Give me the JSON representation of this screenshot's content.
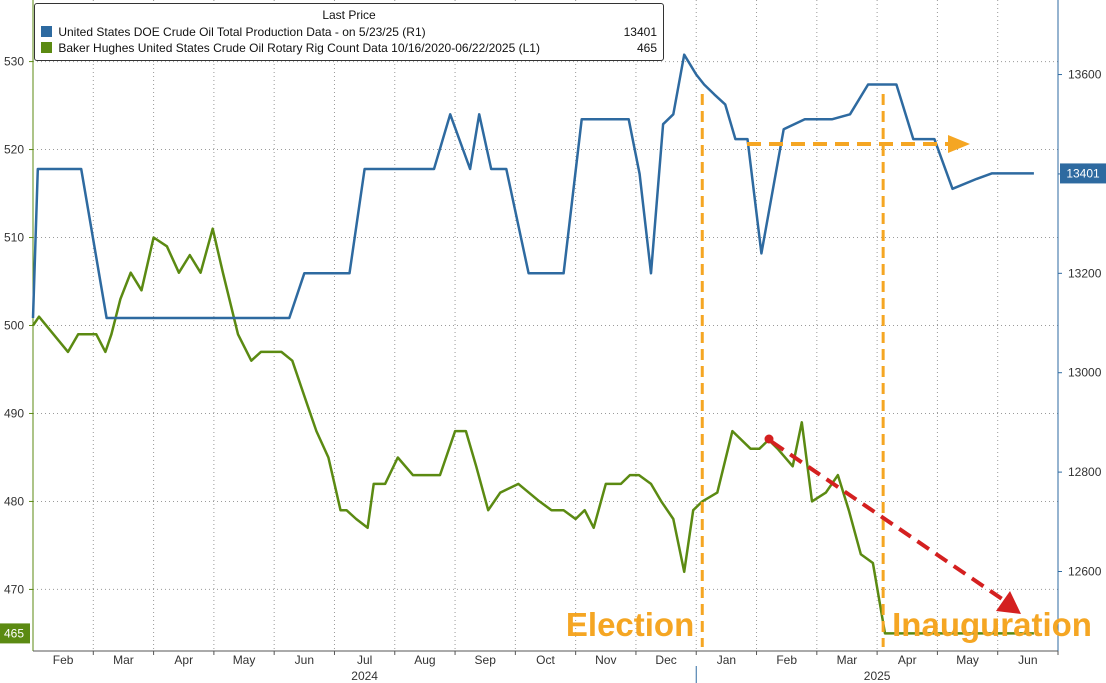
{
  "chart_data": {
    "type": "line",
    "legend": {
      "title": "Last Price",
      "placement": "top-left",
      "entries": [
        {
          "name": "United States DOE Crude Oil Total Production Data -  on 5/23/25  (R1)",
          "value": "13401",
          "color": "#2e6aa0"
        },
        {
          "name": "Baker Hughes United States Crude Oil Rotary Rig Count Data 10/16/2020-06/22/2025  (L1)",
          "value": "465",
          "color": "#5b8a12"
        }
      ]
    },
    "x_axis": {
      "months": [
        "Feb",
        "Mar",
        "Apr",
        "May",
        "Jun",
        "Jul",
        "Aug",
        "Sep",
        "Oct",
        "Nov",
        "Dec",
        "Jan",
        "Feb",
        "Mar",
        "Apr",
        "May",
        "Jun"
      ],
      "years": [
        "2024",
        "2025"
      ],
      "range": [
        0,
        17
      ]
    },
    "y_left": {
      "ticks": [
        "470",
        "480",
        "490",
        "500",
        "510",
        "520",
        "530"
      ],
      "range": [
        463,
        537
      ],
      "last_value": "465"
    },
    "y_right": {
      "ticks": [
        "12600",
        "12800",
        "13000",
        "13200",
        "13400",
        "13600"
      ],
      "range": [
        12440,
        13750
      ],
      "last_value": "13401"
    },
    "series": [
      {
        "name": "Crude Oil Rotary Rig Count",
        "axis": "left",
        "color": "#5b8a12",
        "x": [
          0,
          0.1,
          0.58,
          0.75,
          1.05,
          1.2,
          1.3,
          1.45,
          1.62,
          1.8,
          2.0,
          2.22,
          2.42,
          2.6,
          2.78,
          2.98,
          3.15,
          3.4,
          3.62,
          3.78,
          4.12,
          4.3,
          4.45,
          4.55,
          4.7,
          4.9,
          5.0,
          5.1,
          5.2,
          5.36,
          5.55,
          5.65,
          5.84,
          6.05,
          6.3,
          6.55,
          6.75,
          7.0,
          7.18,
          7.35,
          7.55,
          7.75,
          8.05,
          8.4,
          8.6,
          8.8,
          9.0,
          9.15,
          9.3,
          9.5,
          9.75,
          9.9,
          10.05,
          10.25,
          10.42,
          10.62,
          10.8,
          10.95,
          11.1,
          11.35,
          11.6,
          11.9,
          12.05,
          12.2,
          12.35,
          12.6,
          12.75,
          12.92,
          13.15,
          13.35,
          13.53,
          13.73,
          13.93,
          14.13,
          14.3,
          14.52,
          14.7,
          14.9,
          15.0,
          15.2,
          15.35,
          15.55,
          15.7,
          15.85,
          16.05,
          16.3,
          16.45,
          16.6
        ],
        "values": [
          500,
          501,
          497,
          499,
          499,
          497,
          499,
          503,
          506,
          504,
          510,
          509,
          506,
          508,
          506,
          511,
          506,
          499,
          496,
          497,
          497,
          496,
          493,
          491,
          488,
          485,
          482,
          479,
          479,
          478,
          477,
          482,
          482,
          485,
          483,
          483,
          483,
          488,
          488,
          484,
          479,
          481,
          482,
          480,
          479,
          479,
          478,
          479,
          477,
          482,
          482,
          483,
          483,
          482,
          480,
          478,
          472,
          479,
          480,
          481,
          488,
          486,
          486,
          487,
          486,
          484,
          489,
          480,
          481,
          483,
          479,
          474,
          473,
          465,
          465,
          465,
          465,
          465,
          465,
          465,
          465,
          465,
          465,
          465,
          465,
          465,
          465,
          465
        ]
      },
      {
        "name": "Crude Oil Total Production",
        "axis": "right",
        "color": "#2e6aa0",
        "x": [
          0,
          0.08,
          0.8,
          1.22,
          1.45,
          1.65,
          2.1,
          2.55,
          2.98,
          3.58,
          3.8,
          4.25,
          4.5,
          4.75,
          4.98,
          5.25,
          5.5,
          5.98,
          6.25,
          6.45,
          6.65,
          6.92,
          7.25,
          7.4,
          7.6,
          7.85,
          8.22,
          8.8,
          9.1,
          9.3,
          9.55,
          9.72,
          9.88,
          10.06,
          10.25,
          10.45,
          10.62,
          10.8,
          11.0,
          11.13,
          11.3,
          11.48,
          11.65,
          11.85,
          12.08,
          12.45,
          12.8,
          12.95,
          13.25,
          13.55,
          13.85,
          14.05,
          14.32,
          14.6,
          14.75,
          14.95,
          15.25,
          15.65,
          15.9,
          16.2,
          16.6
        ],
        "values": [
          13110,
          13410,
          13410,
          13110,
          13110,
          13110,
          13110,
          13110,
          13110,
          13110,
          13110,
          13110,
          13200,
          13200,
          13200,
          13200,
          13410,
          13410,
          13410,
          13410,
          13410,
          13520,
          13410,
          13520,
          13410,
          13410,
          13200,
          13200,
          13510,
          13510,
          13510,
          13510,
          13510,
          13400,
          13200,
          13500,
          13520,
          13640,
          13600,
          13580,
          13560,
          13540,
          13470,
          13470,
          13240,
          13490,
          13510,
          13510,
          13510,
          13520,
          13580,
          13580,
          13580,
          13470,
          13470,
          13470,
          13370,
          13390,
          13401,
          13401,
          13401
        ]
      }
    ],
    "annotations": [
      {
        "label": "Election",
        "x": 11.1
      },
      {
        "label": "Inauguration",
        "x": 14.1
      }
    ]
  }
}
